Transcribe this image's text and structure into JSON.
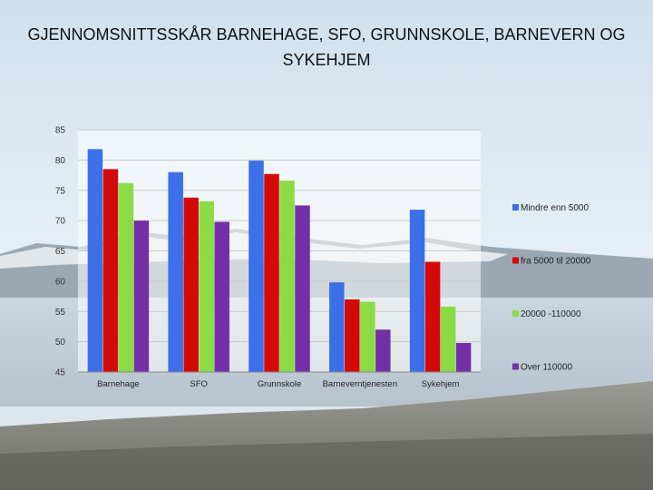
{
  "slide": {
    "title": "GJENNOMSNITTSSKÅR BARNEHAGE, SFO, GRUNNSKOLE, BARNEVERN OG SYKEHJEM"
  },
  "chart_data": {
    "type": "bar",
    "categories": [
      "Barnehage",
      "SFO",
      "Grunnskole",
      "Barneverntjenesten",
      "Sykehjem"
    ],
    "series": [
      {
        "name": "Mindre enn 5000",
        "color": "#3C6FE8",
        "values": [
          81.8,
          78.0,
          79.9,
          59.8,
          71.8
        ]
      },
      {
        "name": "fra 5000 til 20000",
        "color": "#D40A0A",
        "values": [
          78.5,
          73.8,
          77.7,
          57.0,
          63.2
        ]
      },
      {
        "name": "20000 -110000",
        "color": "#8ADB44",
        "values": [
          76.2,
          73.2,
          76.6,
          56.6,
          55.8
        ]
      },
      {
        "name": "Over 110000",
        "color": "#7330A6",
        "values": [
          70.0,
          69.8,
          72.5,
          52.0,
          49.8
        ]
      }
    ],
    "ylim": [
      45,
      85
    ],
    "yticks": [
      45,
      50,
      55,
      60,
      65,
      70,
      75,
      80,
      85
    ],
    "grid": true,
    "legend": "right"
  }
}
